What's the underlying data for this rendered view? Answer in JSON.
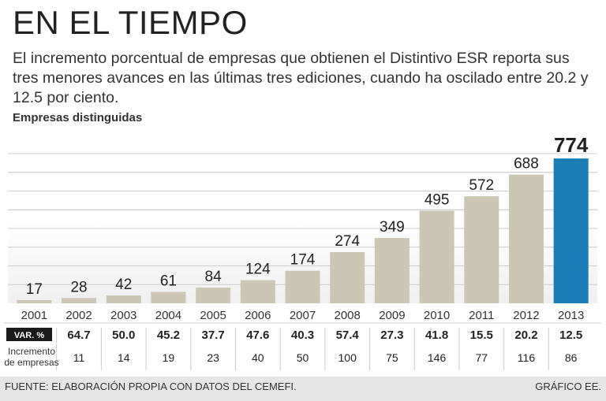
{
  "title": "EN EL TIEMPO",
  "subtitle": "El incremento porcentual de empresas que obtienen el Distintivo ESR reporta sus tres menores avances en las últimas tres ediciones, cuando ha oscilado entre 20.2 y 12.5 por ciento.",
  "section_label": "Empresas distinguidas",
  "footer": {
    "source": "FUENTE: ELABORACIÓN PROPIA CON DATOS DEL CEMEFI.",
    "credit": "GRÁFICO EE."
  },
  "colors": {
    "bar": "#cbc7b4",
    "highlight": "#1b7db6",
    "grid": "#cfcfcf",
    "label_bg": "#1a1a1a"
  },
  "chart_data": {
    "type": "bar",
    "title": "Empresas distinguidas",
    "categories": [
      "2001",
      "2002",
      "2003",
      "2004",
      "2005",
      "2006",
      "2007",
      "2008",
      "2009",
      "2010",
      "2011",
      "2012",
      "2013"
    ],
    "values": [
      17,
      28,
      42,
      61,
      84,
      124,
      174,
      274,
      349,
      495,
      572,
      688,
      774
    ],
    "highlight_index": 12,
    "ylim": [
      0,
      800
    ],
    "grid": true,
    "rows": [
      {
        "label": "VAR. %",
        "values": [
          "64.7",
          "50.0",
          "45.2",
          "37.7",
          "47.6",
          "40.3",
          "57.4",
          "27.3",
          "41.8",
          "15.5",
          "20.2",
          "12.5"
        ]
      },
      {
        "label_line1": "Incremento",
        "label_line2": "de empresas",
        "values": [
          "11",
          "14",
          "19",
          "23",
          "40",
          "50",
          "100",
          "75",
          "146",
          "77",
          "116",
          "86"
        ]
      }
    ]
  }
}
